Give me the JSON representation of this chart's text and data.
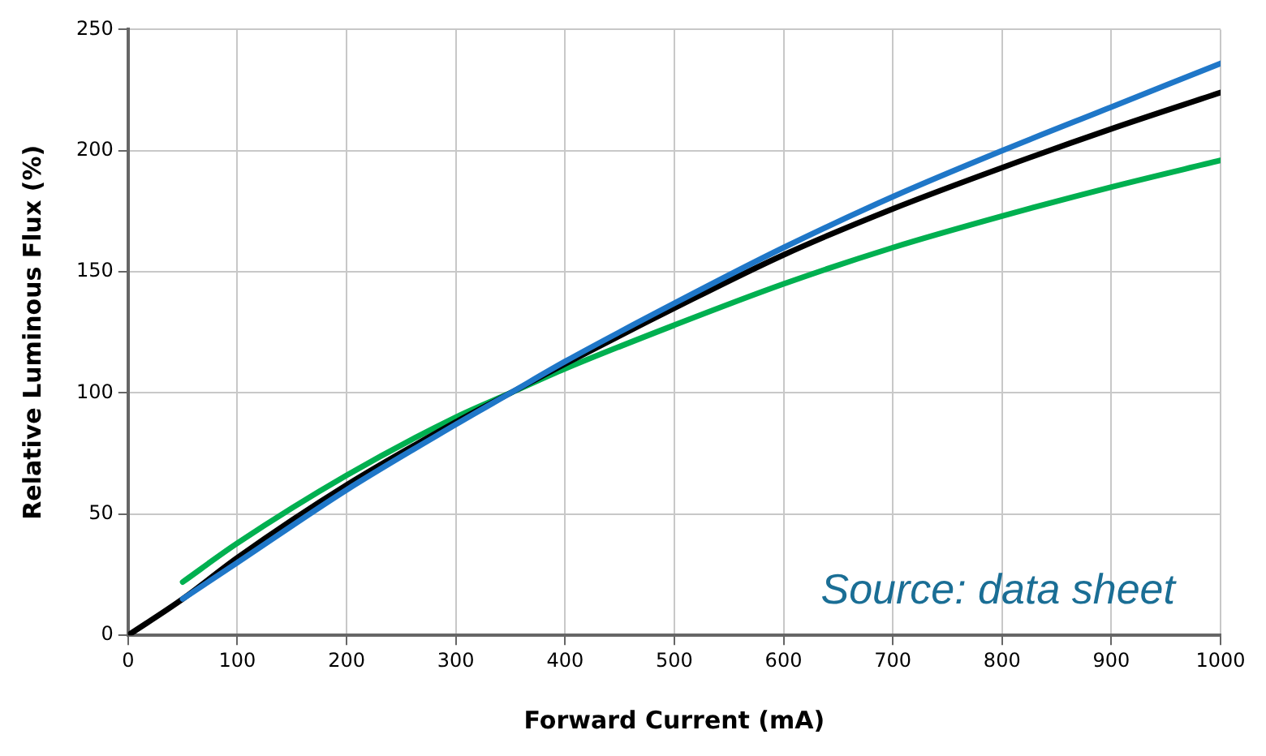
{
  "chart_data": {
    "type": "line",
    "xlabel": "Forward Current (mA)",
    "ylabel": "Relative Luminous Flux (%)",
    "annotations": [
      "Source: data sheet"
    ],
    "series": [
      {
        "color": "#1f77c8",
        "x": [
          50,
          100,
          200,
          300,
          350,
          400,
          500,
          600,
          700,
          800,
          900,
          1000
        ],
        "values": [
          15,
          30,
          60,
          87,
          100,
          113,
          137,
          160,
          181,
          200,
          218,
          236
        ]
      },
      {
        "color": "#000000",
        "x": [
          0,
          50,
          100,
          200,
          300,
          350,
          400,
          500,
          600,
          700,
          800,
          900,
          1000
        ],
        "values": [
          0,
          15,
          32,
          62,
          88,
          100,
          112,
          135,
          157,
          176,
          193,
          209,
          224
        ]
      },
      {
        "color": "#00b050",
        "x": [
          50,
          100,
          200,
          300,
          350,
          400,
          500,
          600,
          700,
          800,
          900,
          1000
        ],
        "values": [
          22,
          38,
          66,
          90,
          100,
          110,
          128,
          145,
          160,
          173,
          185,
          196
        ]
      }
    ],
    "xlim": [
      0,
      1000
    ],
    "xticks": [
      0,
      100,
      200,
      300,
      400,
      500,
      600,
      700,
      800,
      900,
      1000
    ],
    "ylim": [
      0,
      250
    ],
    "yticks": [
      0,
      50,
      100,
      150,
      200,
      250
    ],
    "grid": true,
    "legend": false,
    "marker": "none",
    "line_style": "solid"
  }
}
